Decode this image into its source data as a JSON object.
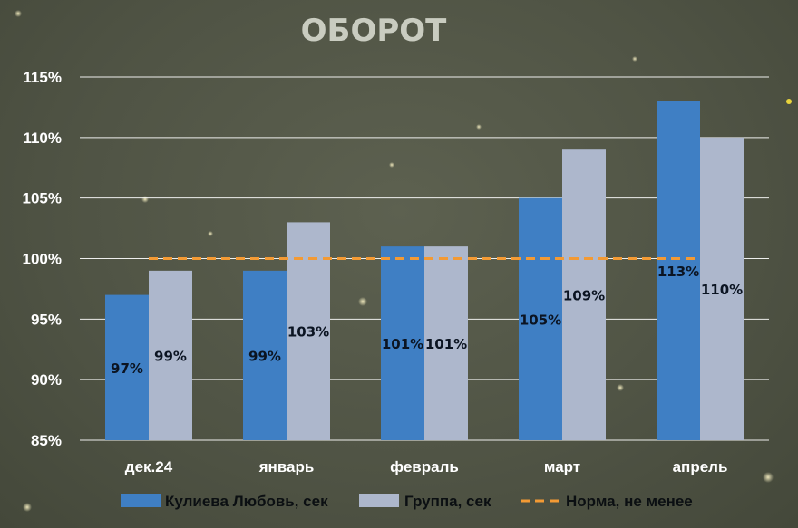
{
  "chart_data": {
    "type": "bar",
    "title": "ОБОРОТ",
    "categories": [
      "дек.24",
      "январь",
      "февраль",
      "март",
      "апрель"
    ],
    "series": [
      {
        "name": "Кулиева Любовь, сек",
        "values": [
          97,
          99,
          101,
          105,
          113
        ],
        "labels": [
          "97%",
          "99%",
          "101%",
          "105%",
          "113%"
        ],
        "color": "#3f7fc4"
      },
      {
        "name": "Группа, сек",
        "values": [
          99,
          103,
          101,
          109,
          110
        ],
        "labels": [
          "99%",
          "103%",
          "101%",
          "109%",
          "110%"
        ],
        "color": "#adb7cc"
      }
    ],
    "norm": {
      "name": "Норма, не менее",
      "value": 100,
      "color": "#f39a34"
    },
    "ylim": [
      85,
      115
    ],
    "yticks": [
      85,
      90,
      95,
      100,
      105,
      110,
      115
    ],
    "ytick_labels": [
      "85%",
      "90%",
      "95%",
      "100%",
      "105%",
      "110%",
      "115%"
    ],
    "grid": true,
    "legend_position": "bottom"
  }
}
